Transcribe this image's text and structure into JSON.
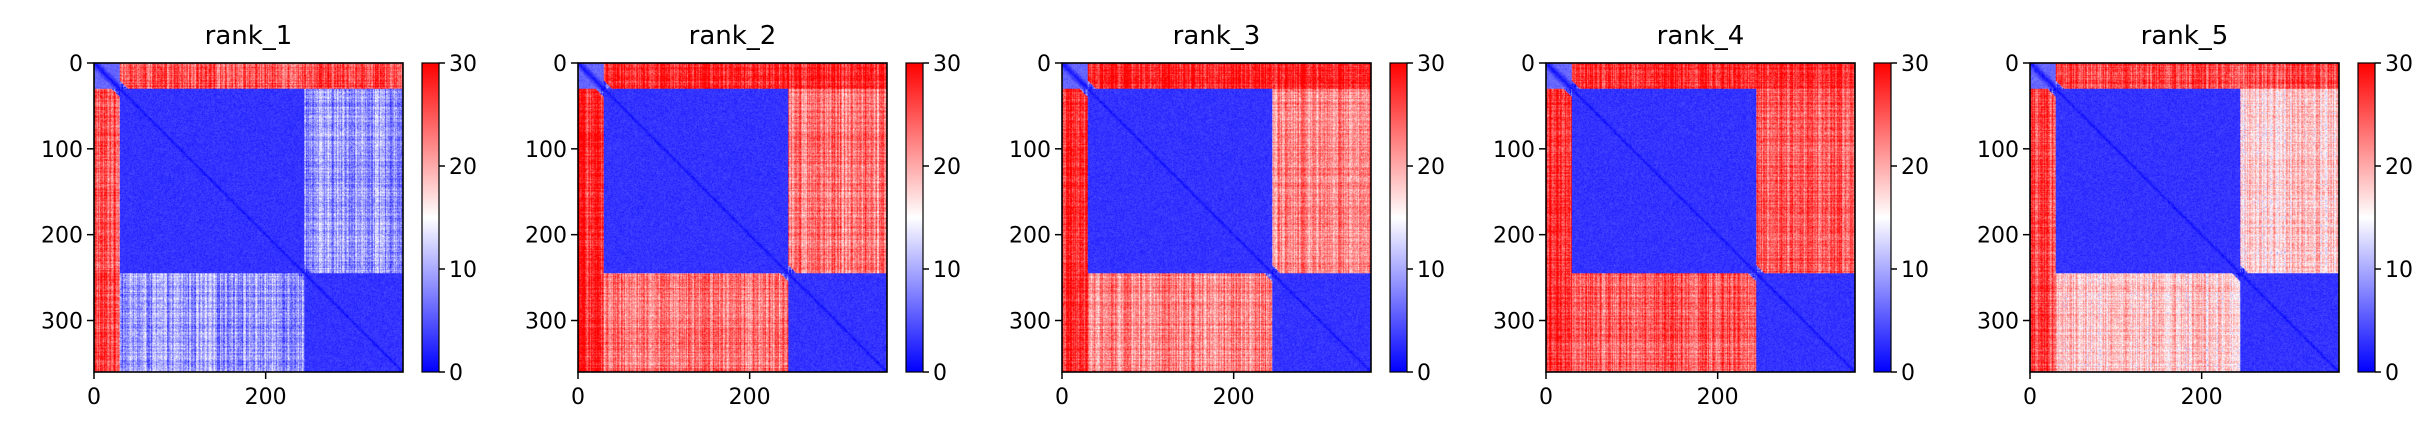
{
  "colors": {
    "low": "#0000ff",
    "mid": "#ffffff",
    "high": "#ff0000",
    "axis": "#000000",
    "background": "#ffffff"
  },
  "colorbar": {
    "colormap": "bwr",
    "range": [
      0,
      30
    ],
    "ticks": [
      0,
      10,
      20,
      30
    ],
    "tick_labels": [
      "0",
      "10",
      "20",
      "30"
    ]
  },
  "chart_data": [
    {
      "type": "heatmap",
      "title": "rank_1",
      "size": 360,
      "x_ticks": [
        0,
        200
      ],
      "x_tick_labels": [
        "0",
        "200"
      ],
      "y_ticks": [
        0,
        100,
        200,
        300
      ],
      "y_tick_labels": [
        "0",
        "100",
        "200",
        "300"
      ],
      "domains": [
        [
          0,
          30
        ],
        [
          30,
          245
        ],
        [
          245,
          360
        ]
      ],
      "block_values": [
        [
          6,
          25,
          26
        ],
        [
          25,
          3,
          9
        ],
        [
          26,
          9,
          3
        ]
      ],
      "vmin": 0,
      "vmax": 30
    },
    {
      "type": "heatmap",
      "title": "rank_2",
      "size": 360,
      "x_ticks": [
        0,
        200
      ],
      "x_tick_labels": [
        "0",
        "200"
      ],
      "y_ticks": [
        0,
        100,
        200,
        300
      ],
      "y_tick_labels": [
        "0",
        "100",
        "200",
        "300"
      ],
      "domains": [
        [
          0,
          30
        ],
        [
          30,
          245
        ],
        [
          245,
          360
        ]
      ],
      "block_values": [
        [
          6,
          28,
          28
        ],
        [
          28,
          3,
          23
        ],
        [
          28,
          23,
          3
        ]
      ],
      "vmin": 0,
      "vmax": 30
    },
    {
      "type": "heatmap",
      "title": "rank_3",
      "size": 360,
      "x_ticks": [
        0,
        200
      ],
      "x_tick_labels": [
        "0",
        "200"
      ],
      "y_ticks": [
        0,
        100,
        200,
        300
      ],
      "y_tick_labels": [
        "0",
        "100",
        "200",
        "300"
      ],
      "domains": [
        [
          0,
          30
        ],
        [
          30,
          245
        ],
        [
          245,
          360
        ]
      ],
      "block_values": [
        [
          6,
          28,
          28
        ],
        [
          28,
          3,
          22
        ],
        [
          28,
          22,
          3
        ]
      ],
      "vmin": 0,
      "vmax": 30
    },
    {
      "type": "heatmap",
      "title": "rank_4",
      "size": 360,
      "x_ticks": [
        0,
        200
      ],
      "x_tick_labels": [
        "0",
        "200"
      ],
      "y_ticks": [
        0,
        100,
        200,
        300
      ],
      "y_tick_labels": [
        "0",
        "100",
        "200",
        "300"
      ],
      "domains": [
        [
          0,
          30
        ],
        [
          30,
          245
        ],
        [
          245,
          360
        ]
      ],
      "block_values": [
        [
          6,
          28,
          28
        ],
        [
          28,
          3,
          25
        ],
        [
          28,
          25,
          3
        ]
      ],
      "vmin": 0,
      "vmax": 30
    },
    {
      "type": "heatmap",
      "title": "rank_5",
      "size": 360,
      "x_ticks": [
        0,
        200
      ],
      "x_tick_labels": [
        "0",
        "200"
      ],
      "y_ticks": [
        0,
        100,
        200,
        300
      ],
      "y_tick_labels": [
        "0",
        "100",
        "200",
        "300"
      ],
      "domains": [
        [
          0,
          30
        ],
        [
          30,
          245
        ],
        [
          245,
          360
        ]
      ],
      "block_values": [
        [
          6,
          26,
          26
        ],
        [
          26,
          3,
          18
        ],
        [
          26,
          18,
          3
        ]
      ],
      "vmin": 0,
      "vmax": 30
    }
  ]
}
